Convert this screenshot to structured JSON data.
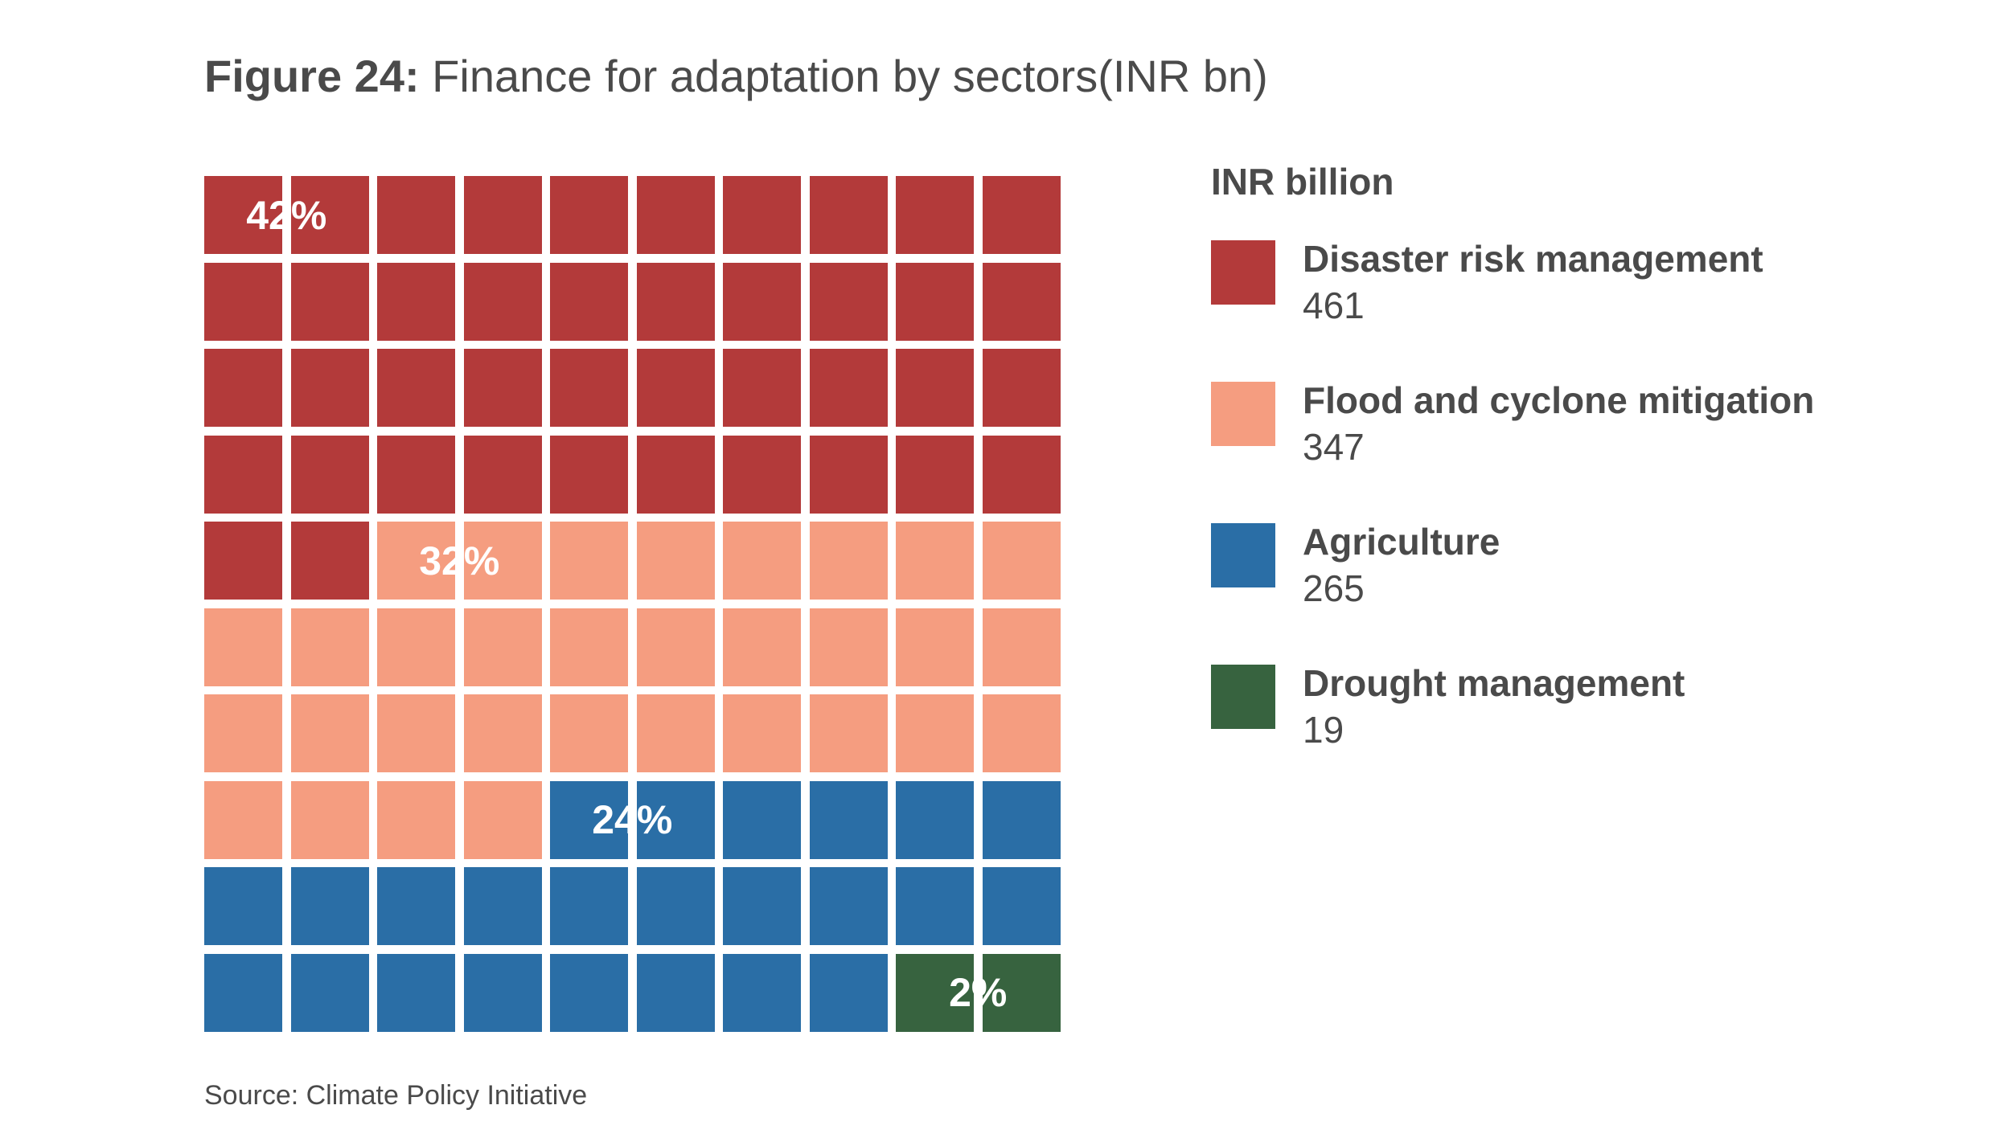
{
  "title": {
    "lead": "Figure 24:",
    "text": " Finance for adaptation by sectors(INR bn)"
  },
  "legend_title": "INR billion",
  "source": "Source: Climate Policy Initiative",
  "chart_data": {
    "type": "waffle",
    "grid": {
      "rows": 10,
      "cols": 10
    },
    "unit": "INR billion",
    "series": [
      {
        "name": "Disaster risk management",
        "value": 461,
        "percent_label": "42%",
        "squares": 42,
        "color": "#b33a3a"
      },
      {
        "name": "Flood and cyclone mitigation",
        "value": 347,
        "percent_label": "32%",
        "squares": 32,
        "color": "#f59d80"
      },
      {
        "name": "Agriculture",
        "value": 265,
        "percent_label": "24%",
        "squares": 24,
        "color": "#2a6ea6"
      },
      {
        "name": "Drought management",
        "value": 19,
        "percent_label": "2%",
        "squares": 2,
        "color": "#37633f"
      }
    ]
  }
}
